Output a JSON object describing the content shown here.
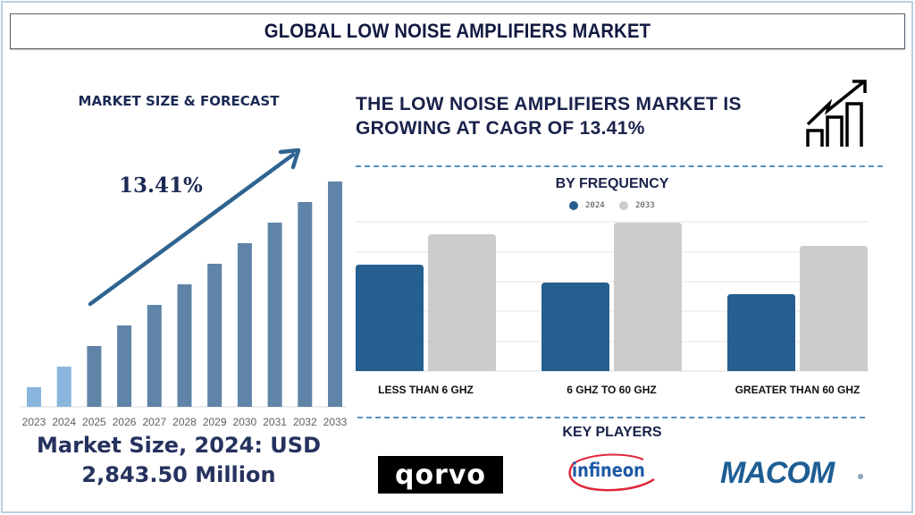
{
  "title": "GLOBAL LOW NOISE AMPLIFIERS MARKET",
  "left_panel": {
    "heading": "MARKET SIZE & FORECAST",
    "cagr_label": "13.41%",
    "market_size_line1": "Market Size, 2024: USD",
    "market_size_line2": "2,843.50 Million"
  },
  "right_panel": {
    "growth_line1": "THE LOW NOISE AMPLIFIERS MARKET IS",
    "growth_line2": "GROWING AT CAGR OF 13.41%",
    "icon": "growth-chart-icon",
    "frequency_title": "BY FREQUENCY",
    "legend": [
      {
        "label": "2024",
        "color": "#245f8f"
      },
      {
        "label": "2033",
        "color": "#cccccc"
      }
    ],
    "key_players_title": "KEY PLAYERS",
    "key_players": [
      "qorvo",
      "infineon",
      "MACOM"
    ]
  },
  "colors": {
    "title_text": "#121a40",
    "bar_historic": "#8ab6de",
    "bar_forecast": "#5f84a8",
    "arrow": "#2f6491",
    "series_2024": "#245f8f",
    "series_2033": "#cccccc",
    "dash": "#5b8fbd",
    "frame": "#b9cfe0"
  },
  "chart_data": [
    {
      "type": "bar",
      "title": "MARKET SIZE & FORECAST",
      "categories": [
        "2023",
        "2024",
        "2025",
        "2026",
        "2027",
        "2028",
        "2029",
        "2030",
        "2031",
        "2032",
        "2033"
      ],
      "values": [
        22,
        45,
        68,
        91,
        114,
        137,
        160,
        183,
        206,
        229,
        252
      ],
      "units": "relative bar height (px); no y-axis shown",
      "annotations": [
        "13.41% (CAGR arrow)",
        "Market Size, 2024: USD 2,843.50 Million"
      ],
      "highlight": {
        "historic": [
          "2023",
          "2024"
        ],
        "forecast": [
          "2025",
          "2026",
          "2027",
          "2028",
          "2029",
          "2030",
          "2031",
          "2032",
          "2033"
        ]
      },
      "grid": false,
      "xlabel": "",
      "ylabel": ""
    },
    {
      "type": "bar",
      "title": "BY FREQUENCY",
      "categories": [
        "LESS THAN 6 GHZ",
        "6 GHZ TO 60 GHZ",
        "GREATER THAN 60 GHZ"
      ],
      "series": [
        {
          "name": "2024",
          "values": [
            119,
            99,
            86
          ]
        },
        {
          "name": "2033",
          "values": [
            153,
            166,
            140
          ]
        }
      ],
      "units": "relative bar height (px); no y-axis labels shown",
      "legend_position": "top",
      "grid": true,
      "xlabel": "",
      "ylabel": ""
    }
  ]
}
